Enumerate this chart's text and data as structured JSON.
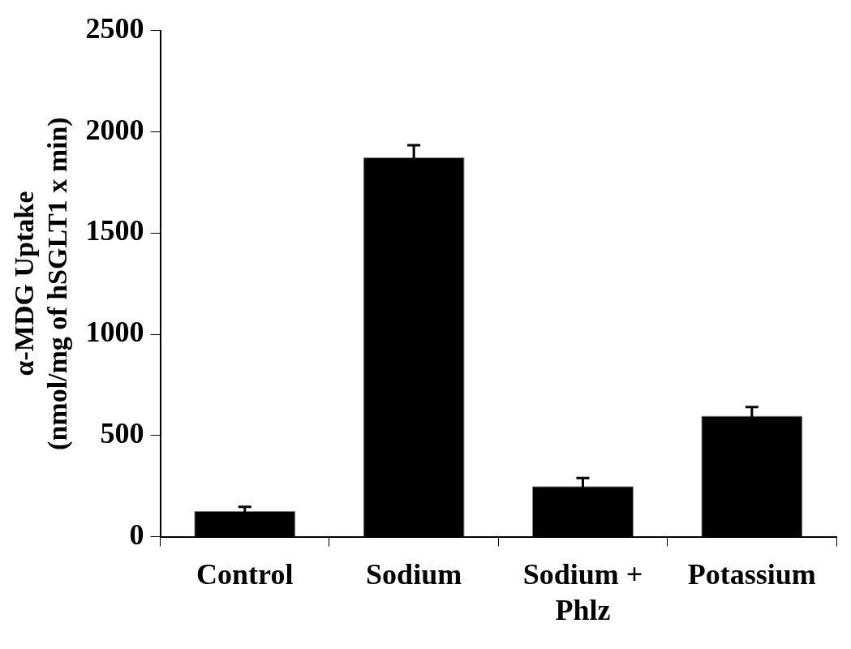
{
  "chart_data": {
    "type": "bar",
    "ylabel": "α-MDG Uptake\n(nmol/mg of hSGLT1 x min)",
    "categories": [
      "Control",
      "Sodium",
      "Sodium +\nPhlz",
      "Potassium"
    ],
    "values": [
      128,
      1873,
      250,
      597
    ],
    "errors": [
      20,
      60,
      40,
      43
    ],
    "color": "#000000",
    "ylim": [
      0,
      2500
    ],
    "yticks": [
      0,
      500,
      1000,
      1500,
      2000,
      2500
    ],
    "grid": false,
    "legend": false
  }
}
